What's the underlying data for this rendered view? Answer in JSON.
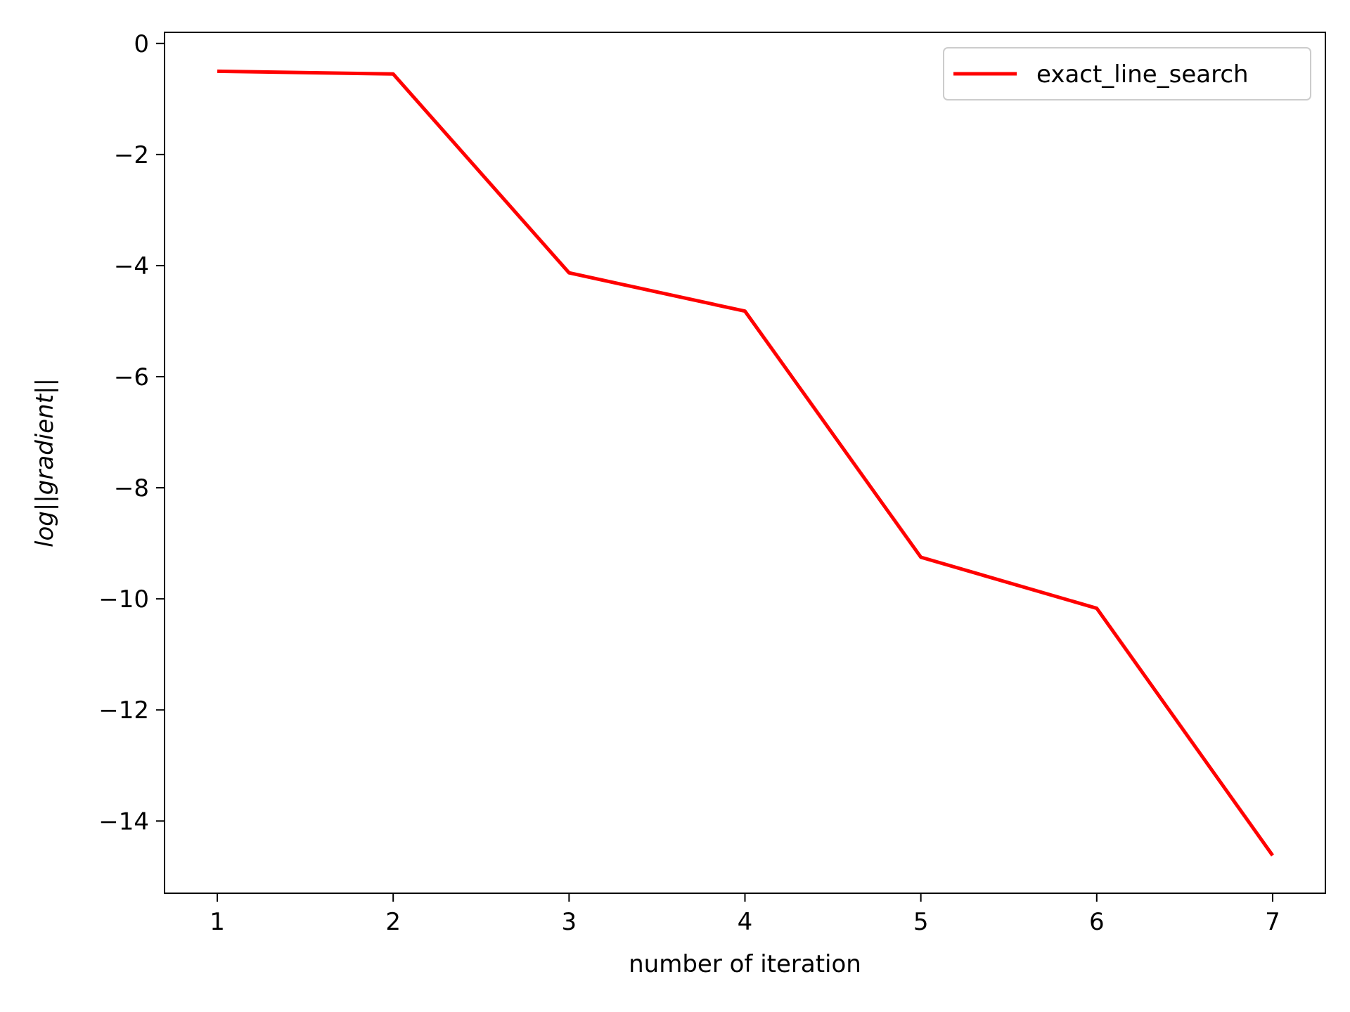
{
  "chart_data": {
    "type": "line",
    "title": "",
    "xlabel": "number of iteration",
    "ylabel": "log||gradient||",
    "xlim": [
      0.7,
      7.3
    ],
    "ylim": [
      -15.3,
      0.2
    ],
    "xticks": [
      1,
      2,
      3,
      4,
      5,
      6,
      7
    ],
    "yticks": [
      0,
      -2,
      -4,
      -6,
      -8,
      -10,
      -12,
      -14
    ],
    "ytick_labels": [
      "0",
      "−2",
      "−4",
      "−6",
      "−8",
      "−10",
      "−12",
      "−14"
    ],
    "grid": false,
    "legend_position": "top-right",
    "series": [
      {
        "name": "exact_line_search",
        "color": "#ff0000",
        "x": [
          1,
          2,
          3,
          4,
          5,
          6,
          7
        ],
        "y": [
          -0.5,
          -0.55,
          -4.13,
          -4.82,
          -9.25,
          -10.17,
          -14.62
        ]
      }
    ]
  }
}
